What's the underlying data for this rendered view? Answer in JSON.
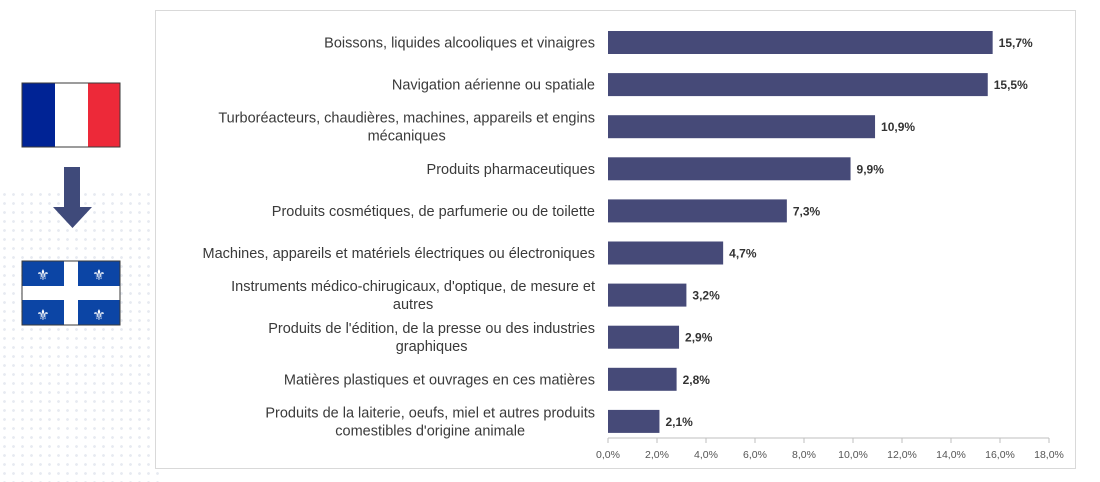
{
  "colors": {
    "bar": "#464a78",
    "france_blue": "#002395",
    "france_red": "#ed2939",
    "quebec_blue": "#0c45a5",
    "arrow": "#3f4a7a"
  },
  "icons": {
    "source_flag": "france-flag-icon",
    "direction": "arrow-down-icon",
    "target_flag": "quebec-flag-icon"
  },
  "chart_data": {
    "type": "bar",
    "orientation": "horizontal",
    "categories": [
      [
        "Boissons, liquides alcooliques et vinaigres"
      ],
      [
        "Navigation aérienne ou spatiale"
      ],
      [
        "Turboréacteurs, chaudières, machines, appareils et engins",
        "mécaniques"
      ],
      [
        "Produits pharmaceutiques"
      ],
      [
        "Produits cosmétiques, de parfumerie ou de toilette"
      ],
      [
        "Machines, appareils et matériels électriques ou électroniques"
      ],
      [
        "Instruments médico-chirugicaux, d'optique, de mesure et",
        "autres"
      ],
      [
        "Produits de l'édition, de la presse ou des industries",
        "graphiques"
      ],
      [
        "Matières plastiques et ouvrages en ces matières"
      ],
      [
        "Produits de la laiterie, oeufs, miel et autres produits",
        "comestibles d'origine animale"
      ]
    ],
    "values": [
      15.7,
      15.5,
      10.9,
      9.9,
      7.3,
      4.7,
      3.2,
      2.9,
      2.8,
      2.1
    ],
    "value_labels": [
      "15,7%",
      "15,5%",
      "10,9%",
      "9,9%",
      "7,3%",
      "4,7%",
      "3,2%",
      "2,9%",
      "2,8%",
      "2,1%"
    ],
    "xlim": [
      0,
      18
    ],
    "x_ticks": [
      0,
      2,
      4,
      6,
      8,
      10,
      12,
      14,
      16,
      18
    ],
    "x_tick_labels": [
      "0,0%",
      "2,0%",
      "4,0%",
      "6,0%",
      "8,0%",
      "10,0%",
      "12,0%",
      "14,0%",
      "16,0%",
      "18,0%"
    ],
    "grid": false,
    "legend": "none"
  }
}
